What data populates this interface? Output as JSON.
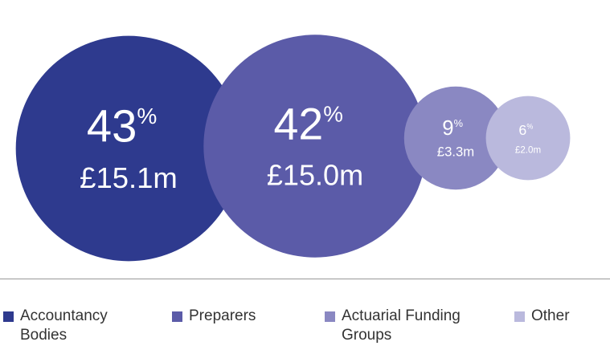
{
  "chart_data": {
    "type": "bubble",
    "categories": [
      "Accountancy Bodies",
      "Preparers",
      "Actuarial Funding Groups",
      "Other"
    ],
    "values": [
      43,
      42,
      9,
      6
    ],
    "value_unit": "%",
    "amounts": [
      15.1,
      15.0,
      3.3,
      2.0
    ],
    "amount_labels": [
      "£15.1m",
      "£15.0m",
      "£3.3m",
      "£2.0m"
    ],
    "colors": [
      "#2e3a8e",
      "#5b5ba8",
      "#8a88c2",
      "#bab9dd"
    ]
  }
}
